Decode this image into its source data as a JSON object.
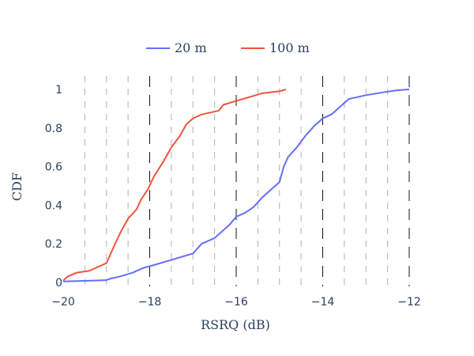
{
  "chart_data": {
    "type": "line",
    "title": "",
    "xlabel": "RSRQ (dB)",
    "ylabel": "CDF",
    "xlim": [
      -20,
      -12
    ],
    "ylim": [
      0,
      1
    ],
    "x_ticks": [
      -20,
      -18,
      -16,
      -14,
      -12
    ],
    "x_tick_labels": [
      "−20",
      "−18",
      "−16",
      "−14",
      "−12"
    ],
    "y_ticks": [
      0,
      0.2,
      0.4,
      0.6,
      0.8,
      1
    ],
    "y_tick_labels": [
      "0",
      "0.2",
      "0.4",
      "0.6",
      "0.8",
      "1"
    ],
    "grid": {
      "vertical_major": [
        -18,
        -16,
        -14,
        -12
      ],
      "vertical_minor": [
        -19.5,
        -19,
        -18.5,
        -17.5,
        -17,
        -16.5,
        -15.5,
        -15,
        -14.5,
        -13.5,
        -13,
        -12.5
      ]
    },
    "legend_position": "top-center",
    "series": [
      {
        "name": "20 m",
        "color": "#636efa",
        "points": [
          [
            -20,
            0.005
          ],
          [
            -19.5,
            0.008
          ],
          [
            -19.0,
            0.012
          ],
          [
            -18.9,
            0.02
          ],
          [
            -18.7,
            0.03
          ],
          [
            -18.4,
            0.05
          ],
          [
            -18.15,
            0.075
          ],
          [
            -17.9,
            0.09
          ],
          [
            -17.6,
            0.11
          ],
          [
            -17.3,
            0.13
          ],
          [
            -17.0,
            0.15
          ],
          [
            -16.8,
            0.2
          ],
          [
            -16.5,
            0.23
          ],
          [
            -16.3,
            0.27
          ],
          [
            -16.15,
            0.3
          ],
          [
            -16.0,
            0.34
          ],
          [
            -15.8,
            0.36
          ],
          [
            -15.6,
            0.39
          ],
          [
            -15.4,
            0.44
          ],
          [
            -15.2,
            0.48
          ],
          [
            -15.0,
            0.52
          ],
          [
            -14.9,
            0.6
          ],
          [
            -14.8,
            0.65
          ],
          [
            -14.6,
            0.7
          ],
          [
            -14.4,
            0.76
          ],
          [
            -14.2,
            0.81
          ],
          [
            -14.0,
            0.85
          ],
          [
            -13.8,
            0.87
          ],
          [
            -13.6,
            0.91
          ],
          [
            -13.4,
            0.95
          ],
          [
            -13.0,
            0.97
          ],
          [
            -12.6,
            0.985
          ],
          [
            -12.3,
            0.995
          ],
          [
            -12.0,
            1.0
          ]
        ]
      },
      {
        "name": "100 m",
        "color": "#ef553b",
        "points": [
          [
            -20,
            0.01
          ],
          [
            -19.9,
            0.03
          ],
          [
            -19.7,
            0.05
          ],
          [
            -19.4,
            0.06
          ],
          [
            -19.2,
            0.08
          ],
          [
            -19.0,
            0.1
          ],
          [
            -18.9,
            0.15
          ],
          [
            -18.8,
            0.2
          ],
          [
            -18.65,
            0.27
          ],
          [
            -18.5,
            0.33
          ],
          [
            -18.3,
            0.38
          ],
          [
            -18.2,
            0.43
          ],
          [
            -18.05,
            0.48
          ],
          [
            -17.9,
            0.55
          ],
          [
            -17.7,
            0.62
          ],
          [
            -17.5,
            0.7
          ],
          [
            -17.3,
            0.76
          ],
          [
            -17.15,
            0.82
          ],
          [
            -17.0,
            0.85
          ],
          [
            -16.8,
            0.87
          ],
          [
            -16.6,
            0.88
          ],
          [
            -16.4,
            0.89
          ],
          [
            -16.3,
            0.92
          ],
          [
            -16.0,
            0.94
          ],
          [
            -15.7,
            0.96
          ],
          [
            -15.4,
            0.98
          ],
          [
            -15.0,
            0.99
          ],
          [
            -14.85,
            1.0
          ]
        ]
      }
    ]
  }
}
